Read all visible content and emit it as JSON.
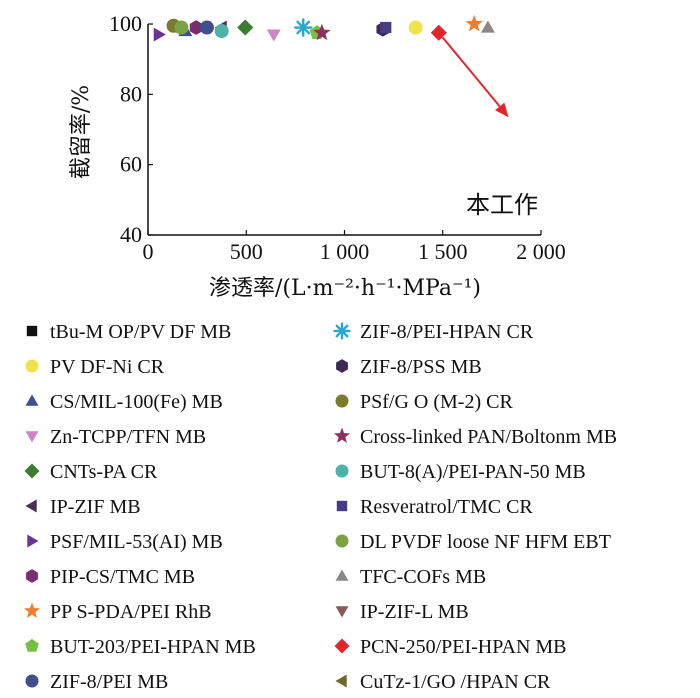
{
  "chart_data": {
    "type": "scatter",
    "title": "",
    "xlabel": "渗透率/(L·m⁻²·h⁻¹·MPa⁻¹)",
    "ylabel": "截留率/%",
    "xlim": [
      0,
      2000
    ],
    "ylim": [
      40,
      100
    ],
    "xticks": [
      0,
      500,
      1000,
      1500,
      2000
    ],
    "xtick_labels": [
      "0",
      "500",
      "1 000",
      "1 500",
      "2 000"
    ],
    "yticks": [
      40,
      60,
      80,
      100
    ],
    "ytick_labels": [
      "40",
      "60",
      "80",
      "100"
    ],
    "annotation": {
      "text": "本工作",
      "arrow_from": [
        1480,
        97.5
      ],
      "arrow_to": [
        1835,
        73.5
      ]
    },
    "legend_columns": 2,
    "series": [
      {
        "name": "tBu-M OP/PV DF MB",
        "marker": "square",
        "color": "#111111",
        "x": [],
        "y": []
      },
      {
        "name": "PV DF-Ni CR",
        "marker": "circle",
        "color": "#f0e24a",
        "x": [
          1362
        ],
        "y": [
          99
        ]
      },
      {
        "name": "CS/MIL-100(Fe) MB",
        "marker": "triangle-up",
        "color": "#3c4f95",
        "x": [
          190
        ],
        "y": [
          98
        ]
      },
      {
        "name": "Zn-TCPP/TFN MB",
        "marker": "triangle-down",
        "color": "#cc86c6",
        "x": [
          640
        ],
        "y": [
          97
        ]
      },
      {
        "name": "CNTs-PA CR",
        "marker": "diamond",
        "color": "#3e7c34",
        "x": [
          495
        ],
        "y": [
          99
        ]
      },
      {
        "name": "IP-ZIF MB",
        "marker": "triangle-left",
        "color": "#4a2f55",
        "x": [
          375
        ],
        "y": [
          99
        ]
      },
      {
        "name": "PSF/MIL-53(AI) MB",
        "marker": "triangle-right",
        "color": "#6a3496",
        "x": [
          55
        ],
        "y": [
          97
        ]
      },
      {
        "name": "PIP-CS/TMC MB",
        "marker": "hexagon",
        "color": "#7a2c6e",
        "x": [
          245
        ],
        "y": [
          99
        ]
      },
      {
        "name": "PP S-PDA/PEI RhB",
        "marker": "star",
        "color": "#f07c2f",
        "x": [
          1660
        ],
        "y": [
          100
        ]
      },
      {
        "name": "BUT-203/PEI-HPAN MB",
        "marker": "pentagon",
        "color": "#76c043",
        "x": [
          860
        ],
        "y": [
          97.5
        ]
      },
      {
        "name": "ZIF-8/PEI MB",
        "marker": "circle",
        "color": "#3f4f8c",
        "x": [
          300
        ],
        "y": [
          99
        ]
      },
      {
        "name": "ZIF-8/PEI-HPAN CR",
        "marker": "asterisk",
        "color": "#2aa8cc",
        "x": [
          790
        ],
        "y": [
          99
        ]
      },
      {
        "name": "ZIF-8/PSS MB",
        "marker": "hexagon",
        "color": "#3a2a55",
        "x": [
          1195
        ],
        "y": [
          98.5
        ]
      },
      {
        "name": "PSf/G O (M-2) CR",
        "marker": "circle",
        "color": "#7b7a2e",
        "x": [
          130
        ],
        "y": [
          99.5
        ]
      },
      {
        "name": "Cross-linked PAN/Boltonm MB",
        "marker": "star",
        "color": "#8e2f60",
        "x": [
          885
        ],
        "y": [
          97.5
        ]
      },
      {
        "name": "BUT-8(A)/PEI-PAN-50 MB",
        "marker": "circle",
        "color": "#4bb3a8",
        "x": [
          375
        ],
        "y": [
          98
        ]
      },
      {
        "name": "Resveratrol/TMC CR",
        "marker": "square",
        "color": "#473b85",
        "x": [
          1210
        ],
        "y": [
          99
        ]
      },
      {
        "name": "DL PVDF loose NF HFM EBT",
        "marker": "circle",
        "color": "#7aa443",
        "x": [
          170
        ],
        "y": [
          99
        ]
      },
      {
        "name": "TFC-COFs MB",
        "marker": "triangle-up",
        "color": "#8a8785",
        "x": [
          1730
        ],
        "y": [
          99
        ]
      },
      {
        "name": "IP-ZIF-L MB",
        "marker": "triangle-down",
        "color": "#8a5a5a",
        "x": [],
        "y": []
      },
      {
        "name": "PCN-250/PEI-HPAN MB",
        "marker": "diamond",
        "color": "#e3262c",
        "x": [
          1480
        ],
        "y": [
          97.5
        ]
      },
      {
        "name": "CuTz-1/GO /HPAN CR",
        "marker": "triangle-left",
        "color": "#6e6a2e",
        "x": [],
        "y": []
      }
    ]
  }
}
